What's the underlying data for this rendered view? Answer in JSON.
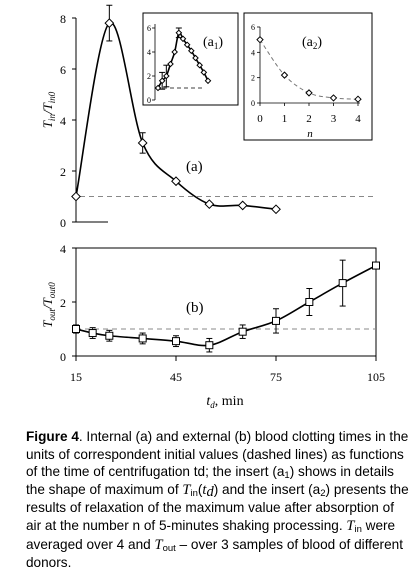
{
  "figure_labels": {
    "panel_a": "(a)",
    "panel_b": "(b)",
    "insert_a1": "(a",
    "insert_a1_sub": "1",
    "insert_a2": "(a",
    "insert_a2_sub": "2",
    "paren_close": ")",
    "xlabel_main": "t",
    "xlabel_sub": "d",
    "xlabel_unit": ", min",
    "ylabel_a_T": "T",
    "ylabel_a_sub1": "in",
    "ylabel_a_slash": "/T",
    "ylabel_a_sub2": "in0",
    "ylabel_b_T": "T",
    "ylabel_b_sub1": "out",
    "ylabel_b_slash": "/T",
    "ylabel_b_sub2": "out0",
    "insert_a2_xlabel": "n"
  },
  "caption": {
    "label": "Figure 4",
    "t1": ". Internal (a) and external (b) blood clotting times in the units of correspondent initial values (dashed lines) as functions of the time of centrifugation td; the insert (a",
    "a1": "1",
    "t2": ") shows in details the shape of maximum of ",
    "T": "T",
    "in": "in",
    "lp": "(",
    "t": "t",
    "d": "d",
    "t3": ") and the insert (a",
    "a2": "2",
    "t4": ") presents the results of relaxation of the maximum value after absorption of air at the number n of 5-minutes shaking processing. ",
    "T2": "T",
    "in2": "in",
    "t5": " were averaged over 4 and ",
    "T3": "T",
    "out": "out",
    "t6": " – over 3 samples of blood of different donors."
  },
  "chart_data": [
    {
      "id": "a",
      "type": "line",
      "title": "",
      "xlabel": "t_d, min",
      "ylabel": "T_in/T_in0",
      "xlim": [
        15,
        105
      ],
      "ylim": [
        0,
        8
      ],
      "yticks": [
        "0",
        "2",
        "4",
        "6",
        "8"
      ],
      "marker": "diamond",
      "reference_line": 1,
      "x": [
        15,
        25,
        35,
        45,
        55,
        65,
        75
      ],
      "y": [
        1.0,
        7.8,
        3.1,
        1.6,
        0.7,
        0.65,
        0.5
      ],
      "err": [
        0,
        0.7,
        0.4,
        0,
        0,
        0,
        0
      ]
    },
    {
      "id": "b",
      "type": "line",
      "xlabel": "t_d, min",
      "ylabel": "T_out/T_out0",
      "xlim": [
        15,
        105
      ],
      "ylim": [
        0,
        4
      ],
      "xticks": [
        "15",
        "45",
        "75",
        "105"
      ],
      "yticks": [
        "0",
        "2",
        "4"
      ],
      "marker": "square",
      "reference_line": 1,
      "x": [
        15,
        20,
        25,
        35,
        45,
        55,
        65,
        75,
        85,
        95,
        105
      ],
      "y": [
        1.0,
        0.85,
        0.75,
        0.65,
        0.55,
        0.4,
        0.9,
        1.3,
        2.0,
        2.7,
        3.35
      ],
      "err": [
        0.15,
        0.2,
        0.2,
        0.2,
        0.2,
        0.25,
        0.25,
        0.45,
        0.5,
        0.85,
        0
      ]
    },
    {
      "id": "a1",
      "type": "line",
      "ylim": [
        0,
        6
      ],
      "yticks": [
        "0",
        "2",
        "4",
        "6"
      ],
      "marker": "diamond",
      "reference_line": 1,
      "y": [
        1.0,
        1.6,
        2.0,
        3.0,
        4.0,
        5.6,
        5.1,
        4.6,
        4.1,
        3.5,
        2.9,
        2.3,
        1.6
      ],
      "err": [
        0,
        0.7,
        0.9,
        0,
        0,
        0.4,
        0,
        0,
        0,
        0,
        0,
        0,
        0
      ]
    },
    {
      "id": "a2",
      "type": "line",
      "xlabel": "n",
      "xlim": [
        0,
        4
      ],
      "ylim": [
        0,
        6
      ],
      "xticks": [
        "0",
        "1",
        "2",
        "3",
        "4"
      ],
      "yticks": [
        "0",
        "2",
        "4",
        "6"
      ],
      "marker": "diamond",
      "x": [
        0,
        1,
        2,
        3,
        4
      ],
      "y": [
        5.0,
        2.2,
        0.8,
        0.4,
        0.3
      ]
    }
  ]
}
